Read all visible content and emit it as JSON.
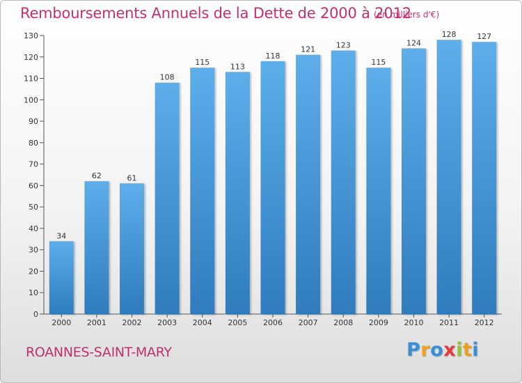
{
  "chart_data": {
    "type": "bar",
    "title": "Remboursements Annuels de la Dette de 2000 à 2012",
    "unit_note": "(en milliers d'€)",
    "categories": [
      "2000",
      "2001",
      "2002",
      "2003",
      "2004",
      "2005",
      "2006",
      "2007",
      "2008",
      "2009",
      "2010",
      "2011",
      "2012"
    ],
    "values": [
      34,
      62,
      61,
      108,
      115,
      113,
      118,
      121,
      123,
      115,
      124,
      128,
      127
    ],
    "data_labels": [
      "34",
      "62",
      "61",
      "108",
      "115",
      "113",
      "118",
      "121",
      "123",
      "115",
      "124",
      "128",
      "127"
    ],
    "ylim": [
      0,
      130
    ],
    "yticks": [
      0,
      10,
      20,
      30,
      40,
      50,
      60,
      70,
      80,
      90,
      100,
      110,
      120,
      130
    ],
    "ytick_labels": [
      "0",
      "10",
      "20",
      "30",
      "40",
      "50",
      "60",
      "70",
      "80",
      "90",
      "100",
      "110",
      "120",
      "130"
    ],
    "grid": false,
    "colors": {
      "bar_light": "#5daeea",
      "bar_dark": "#2f7cbd",
      "title": "#c0306e"
    }
  },
  "footer": {
    "commune": "ROANNES-SAINT-MARY",
    "brand": "Proxiti",
    "brand_colors": [
      "#3a8fd6",
      "#f0a020",
      "#3a8fd6",
      "#e33b3b",
      "#8fc43c",
      "#f0a020",
      "#3a8fd6"
    ]
  }
}
